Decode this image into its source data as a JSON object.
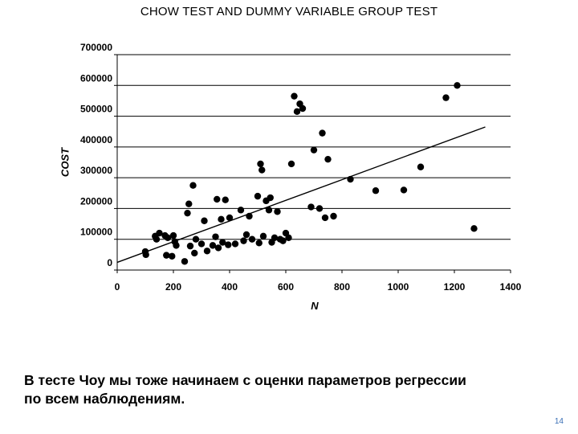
{
  "slide": {
    "title": "CHOW TEST AND DUMMY VARIABLE GROUP TEST",
    "caption_line1": "В тесте Чоу мы тоже начинаем с оценки параметров регрессии",
    "caption_line2": "по всем наблюдениям.",
    "page_number": "14"
  },
  "chart_data": {
    "type": "scatter",
    "xlabel": "N",
    "ylabel": "COST",
    "xlim": [
      0,
      1400
    ],
    "ylim": [
      0,
      700000
    ],
    "x_ticks": [
      0,
      200,
      400,
      600,
      800,
      1000,
      1200,
      1400
    ],
    "y_ticks": [
      0,
      100000,
      200000,
      300000,
      400000,
      500000,
      600000,
      700000
    ],
    "gridlines": "horizontal",
    "legend": "none",
    "marker_color": "#000000",
    "points": [
      {
        "x": 100,
        "y": 60000
      },
      {
        "x": 102,
        "y": 50000
      },
      {
        "x": 135,
        "y": 110000
      },
      {
        "x": 140,
        "y": 100000
      },
      {
        "x": 150,
        "y": 120000
      },
      {
        "x": 170,
        "y": 112000
      },
      {
        "x": 175,
        "y": 48000
      },
      {
        "x": 180,
        "y": 105000
      },
      {
        "x": 195,
        "y": 45000
      },
      {
        "x": 200,
        "y": 112000
      },
      {
        "x": 205,
        "y": 92000
      },
      {
        "x": 210,
        "y": 80000
      },
      {
        "x": 240,
        "y": 28000
      },
      {
        "x": 250,
        "y": 185000
      },
      {
        "x": 255,
        "y": 215000
      },
      {
        "x": 260,
        "y": 78000
      },
      {
        "x": 270,
        "y": 275000
      },
      {
        "x": 275,
        "y": 55000
      },
      {
        "x": 280,
        "y": 100000
      },
      {
        "x": 300,
        "y": 85000
      },
      {
        "x": 310,
        "y": 160000
      },
      {
        "x": 320,
        "y": 62000
      },
      {
        "x": 340,
        "y": 80000
      },
      {
        "x": 350,
        "y": 108000
      },
      {
        "x": 355,
        "y": 230000
      },
      {
        "x": 360,
        "y": 72000
      },
      {
        "x": 370,
        "y": 165000
      },
      {
        "x": 375,
        "y": 90000
      },
      {
        "x": 385,
        "y": 228000
      },
      {
        "x": 395,
        "y": 82000
      },
      {
        "x": 400,
        "y": 170000
      },
      {
        "x": 420,
        "y": 85000
      },
      {
        "x": 440,
        "y": 195000
      },
      {
        "x": 450,
        "y": 95000
      },
      {
        "x": 460,
        "y": 115000
      },
      {
        "x": 470,
        "y": 175000
      },
      {
        "x": 480,
        "y": 100000
      },
      {
        "x": 500,
        "y": 240000
      },
      {
        "x": 505,
        "y": 88000
      },
      {
        "x": 510,
        "y": 345000
      },
      {
        "x": 515,
        "y": 325000
      },
      {
        "x": 520,
        "y": 110000
      },
      {
        "x": 530,
        "y": 225000
      },
      {
        "x": 540,
        "y": 195000
      },
      {
        "x": 545,
        "y": 235000
      },
      {
        "x": 550,
        "y": 90000
      },
      {
        "x": 560,
        "y": 105000
      },
      {
        "x": 570,
        "y": 190000
      },
      {
        "x": 580,
        "y": 100000
      },
      {
        "x": 590,
        "y": 95000
      },
      {
        "x": 600,
        "y": 120000
      },
      {
        "x": 610,
        "y": 105000
      },
      {
        "x": 620,
        "y": 345000
      },
      {
        "x": 630,
        "y": 565000
      },
      {
        "x": 640,
        "y": 515000
      },
      {
        "x": 650,
        "y": 540000
      },
      {
        "x": 660,
        "y": 525000
      },
      {
        "x": 690,
        "y": 205000
      },
      {
        "x": 700,
        "y": 390000
      },
      {
        "x": 720,
        "y": 200000
      },
      {
        "x": 730,
        "y": 445000
      },
      {
        "x": 740,
        "y": 170000
      },
      {
        "x": 750,
        "y": 360000
      },
      {
        "x": 770,
        "y": 175000
      },
      {
        "x": 830,
        "y": 295000
      },
      {
        "x": 920,
        "y": 258000
      },
      {
        "x": 1020,
        "y": 260000
      },
      {
        "x": 1080,
        "y": 335000
      },
      {
        "x": 1170,
        "y": 560000
      },
      {
        "x": 1210,
        "y": 600000
      },
      {
        "x": 1270,
        "y": 135000
      }
    ],
    "regression_line": {
      "x": [
        0,
        1310
      ],
      "y": [
        25000,
        465000
      ]
    }
  }
}
